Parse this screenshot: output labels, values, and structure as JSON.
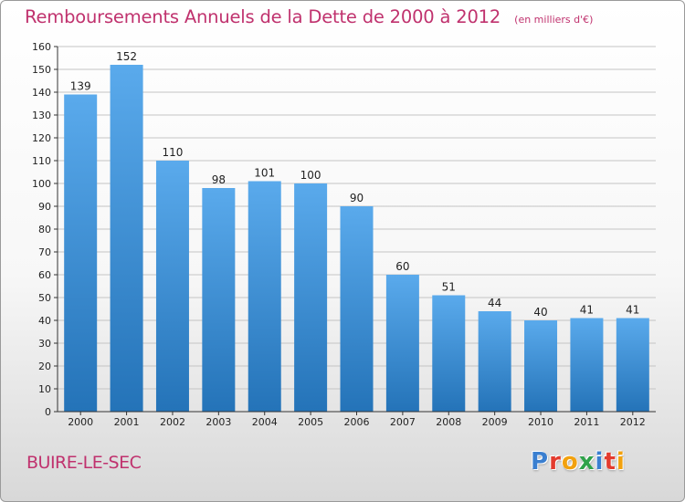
{
  "header": {
    "title": "Remboursements Annuels de la Dette de 2000 à 2012",
    "subtitle": "(en milliers d'€)"
  },
  "footer": {
    "commune": "BUIRE-LE-SEC",
    "logo_text": "Proxiti",
    "logo_colors": [
      "#3a7fd0",
      "#e33b2e",
      "#f2a10e",
      "#2fa24a",
      "#3a7fd0",
      "#e33b2e",
      "#f2a10e"
    ]
  },
  "colors": {
    "accent": "#c0326e",
    "bar_top": "#5aaaec",
    "bar_bottom": "#2473b8",
    "grid": "#c4c4c4",
    "axis": "#333333"
  },
  "chart_data": {
    "type": "bar",
    "categories": [
      "2000",
      "2001",
      "2002",
      "2003",
      "2004",
      "2005",
      "2006",
      "2007",
      "2008",
      "2009",
      "2010",
      "2011",
      "2012"
    ],
    "values": [
      139,
      152,
      110,
      98,
      101,
      100,
      90,
      60,
      51,
      44,
      40,
      41,
      41
    ],
    "ylim": [
      0,
      160
    ],
    "yticks": [
      0,
      10,
      20,
      30,
      40,
      50,
      60,
      70,
      80,
      90,
      100,
      110,
      120,
      130,
      140,
      150,
      160
    ],
    "grid": "horizontal",
    "data_labels": true
  }
}
